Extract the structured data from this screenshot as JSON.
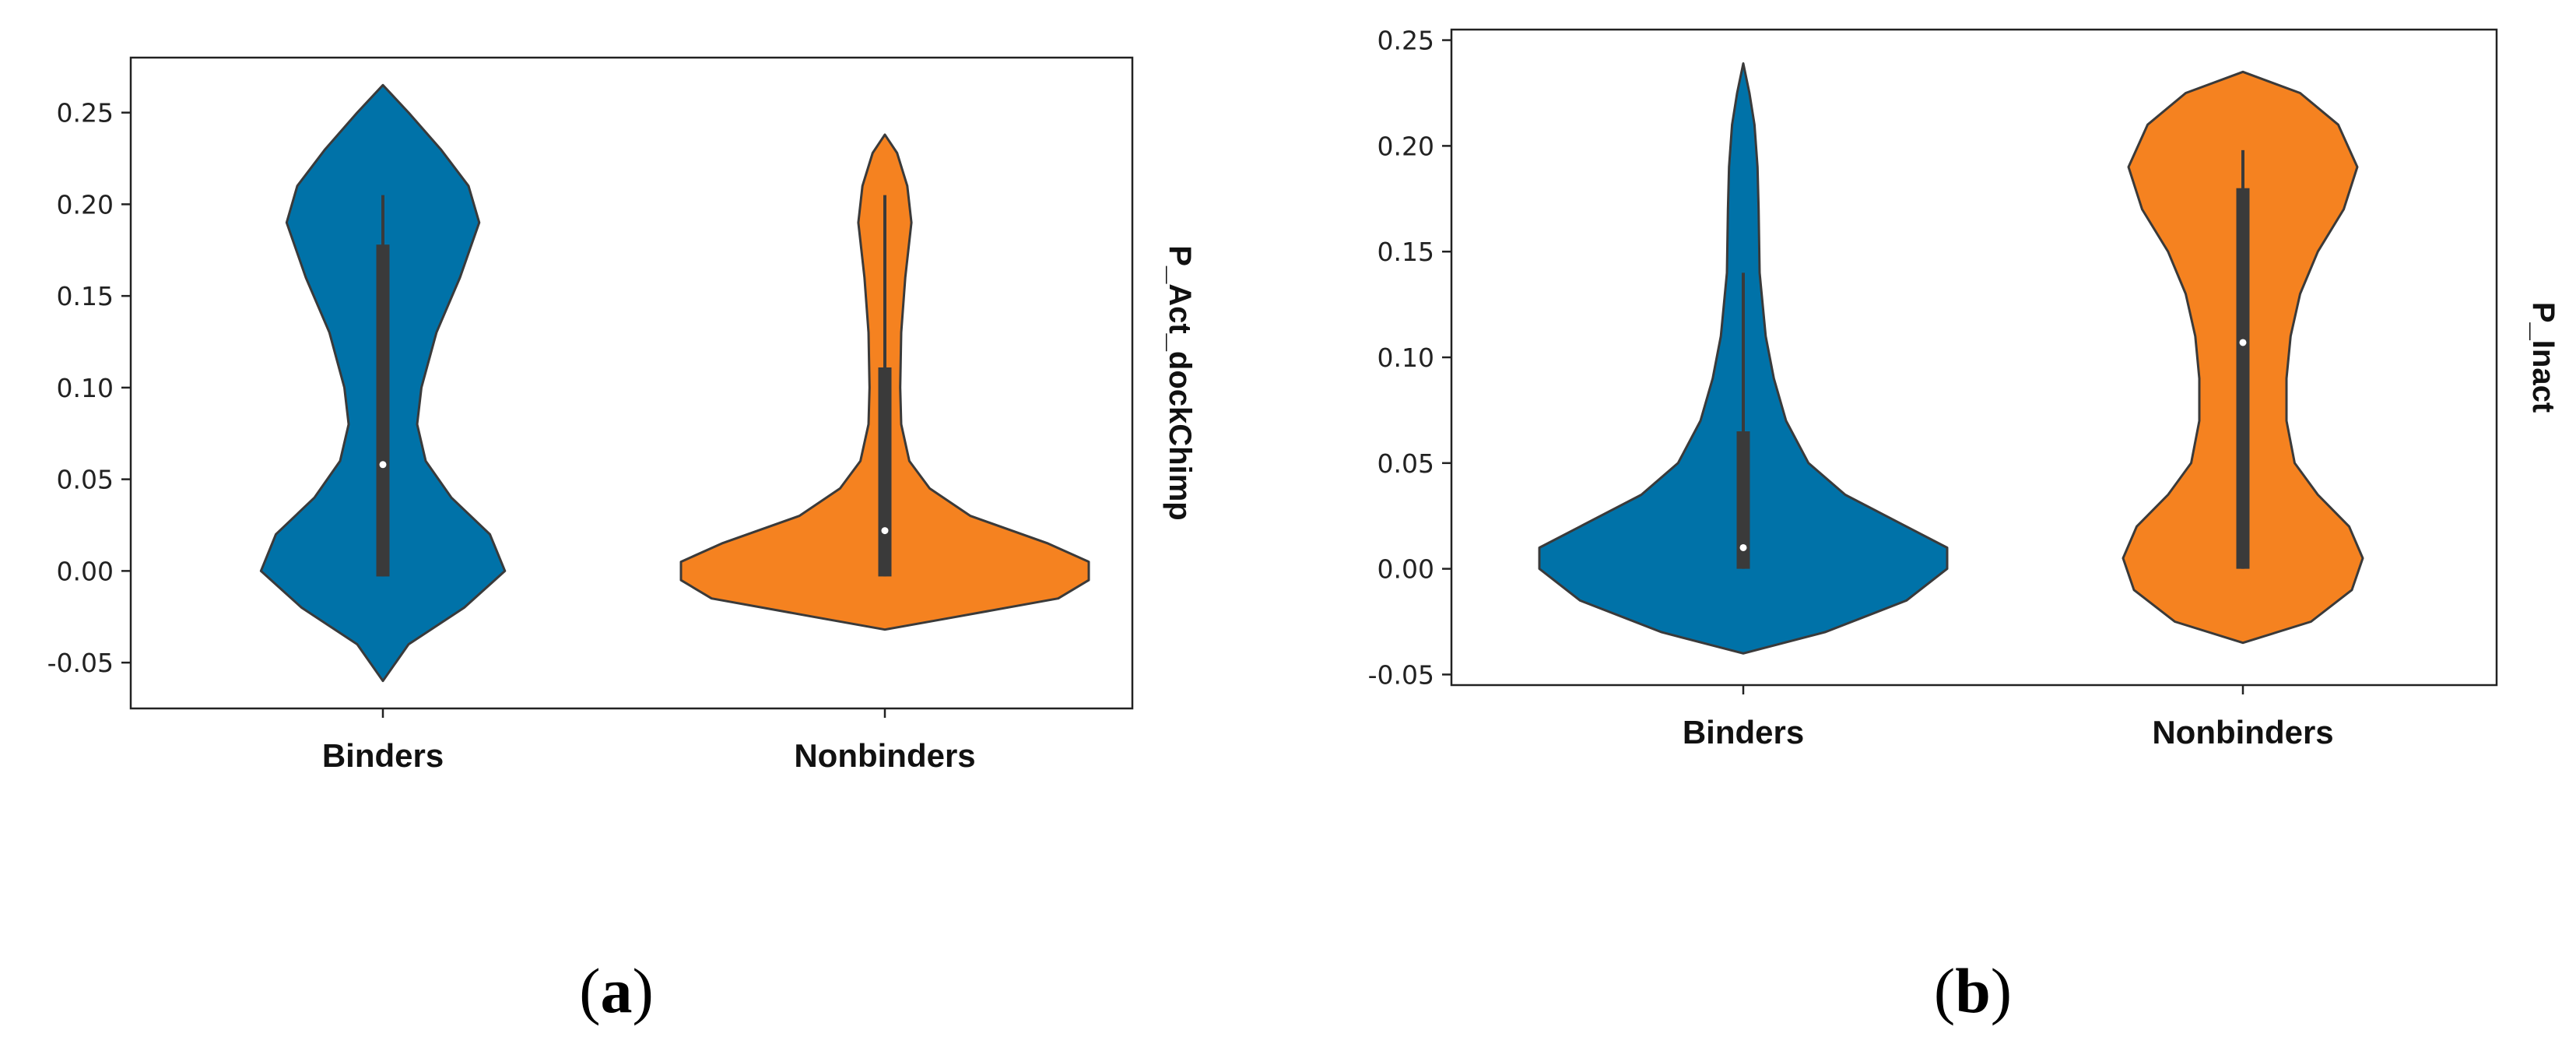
{
  "chart_data": [
    {
      "type": "violin",
      "panel_label": "a",
      "ylabel": "P_Act_dockChimp",
      "ylim": [
        -0.075,
        0.28
      ],
      "yticks": [
        "-0.05",
        "0.00",
        "0.05",
        "0.10",
        "0.15",
        "0.20",
        "0.25"
      ],
      "categories": [
        "Binders",
        "Nonbinders"
      ],
      "series": [
        {
          "name": "Binders",
          "color": "#0072a8",
          "range": [
            -0.06,
            0.265
          ],
          "box": {
            "q1": -0.003,
            "median": 0.058,
            "q3": 0.178,
            "whisker_low": -0.003,
            "whisker_high": 0.205
          },
          "density": [
            [
              -0.06,
              0.0
            ],
            [
              -0.04,
              0.12
            ],
            [
              -0.02,
              0.38
            ],
            [
              0.0,
              0.57
            ],
            [
              0.02,
              0.5
            ],
            [
              0.04,
              0.32
            ],
            [
              0.06,
              0.2
            ],
            [
              0.08,
              0.16
            ],
            [
              0.1,
              0.18
            ],
            [
              0.13,
              0.25
            ],
            [
              0.16,
              0.36
            ],
            [
              0.19,
              0.45
            ],
            [
              0.21,
              0.4
            ],
            [
              0.23,
              0.27
            ],
            [
              0.25,
              0.12
            ],
            [
              0.265,
              0.0
            ]
          ]
        },
        {
          "name": "Nonbinders",
          "color": "#f58220",
          "range": [
            -0.032,
            0.238
          ],
          "box": {
            "q1": -0.003,
            "median": 0.022,
            "q3": 0.111,
            "whisker_low": -0.003,
            "whisker_high": 0.205
          },
          "density": [
            [
              -0.032,
              0.0
            ],
            [
              -0.025,
              0.35
            ],
            [
              -0.015,
              0.85
            ],
            [
              -0.005,
              1.0
            ],
            [
              0.005,
              1.0
            ],
            [
              0.015,
              0.8
            ],
            [
              0.03,
              0.42
            ],
            [
              0.045,
              0.22
            ],
            [
              0.06,
              0.12
            ],
            [
              0.08,
              0.08
            ],
            [
              0.1,
              0.075
            ],
            [
              0.13,
              0.08
            ],
            [
              0.16,
              0.1
            ],
            [
              0.19,
              0.13
            ],
            [
              0.21,
              0.11
            ],
            [
              0.228,
              0.06
            ],
            [
              0.238,
              0.0
            ]
          ]
        }
      ]
    },
    {
      "type": "violin",
      "panel_label": "b",
      "ylabel": "P_Inact",
      "ylim": [
        -0.055,
        0.255
      ],
      "yticks": [
        "-0.05",
        "0.00",
        "0.05",
        "0.10",
        "0.15",
        "0.20",
        "0.25"
      ],
      "categories": [
        "Binders",
        "Nonbinders"
      ],
      "series": [
        {
          "name": "Binders",
          "color": "#0072a8",
          "range": [
            -0.04,
            0.239
          ],
          "box": {
            "q1": 0.0,
            "median": 0.01,
            "q3": 0.065,
            "whisker_low": 0.0,
            "whisker_high": 0.14
          },
          "density": [
            [
              -0.04,
              0.0
            ],
            [
              -0.03,
              0.4
            ],
            [
              -0.015,
              0.8
            ],
            [
              0.0,
              1.0
            ],
            [
              0.01,
              1.0
            ],
            [
              0.02,
              0.8
            ],
            [
              0.035,
              0.5
            ],
            [
              0.05,
              0.32
            ],
            [
              0.07,
              0.21
            ],
            [
              0.09,
              0.15
            ],
            [
              0.11,
              0.11
            ],
            [
              0.14,
              0.08
            ],
            [
              0.17,
              0.075
            ],
            [
              0.19,
              0.07
            ],
            [
              0.21,
              0.055
            ],
            [
              0.225,
              0.03
            ],
            [
              0.239,
              0.0
            ]
          ]
        },
        {
          "name": "Nonbinders",
          "color": "#f58220",
          "range": [
            -0.035,
            0.235
          ],
          "box": {
            "q1": 0.0,
            "median": 0.107,
            "q3": 0.18,
            "whisker_low": 0.0,
            "whisker_high": 0.198
          },
          "density": [
            [
              -0.035,
              0.0
            ],
            [
              -0.025,
              0.5
            ],
            [
              -0.01,
              0.8
            ],
            [
              0.005,
              0.88
            ],
            [
              0.02,
              0.78
            ],
            [
              0.035,
              0.55
            ],
            [
              0.05,
              0.38
            ],
            [
              0.07,
              0.32
            ],
            [
              0.09,
              0.32
            ],
            [
              0.11,
              0.35
            ],
            [
              0.13,
              0.42
            ],
            [
              0.15,
              0.55
            ],
            [
              0.17,
              0.74
            ],
            [
              0.19,
              0.84
            ],
            [
              0.21,
              0.7
            ],
            [
              0.225,
              0.42
            ],
            [
              0.235,
              0.0
            ]
          ]
        }
      ]
    }
  ]
}
